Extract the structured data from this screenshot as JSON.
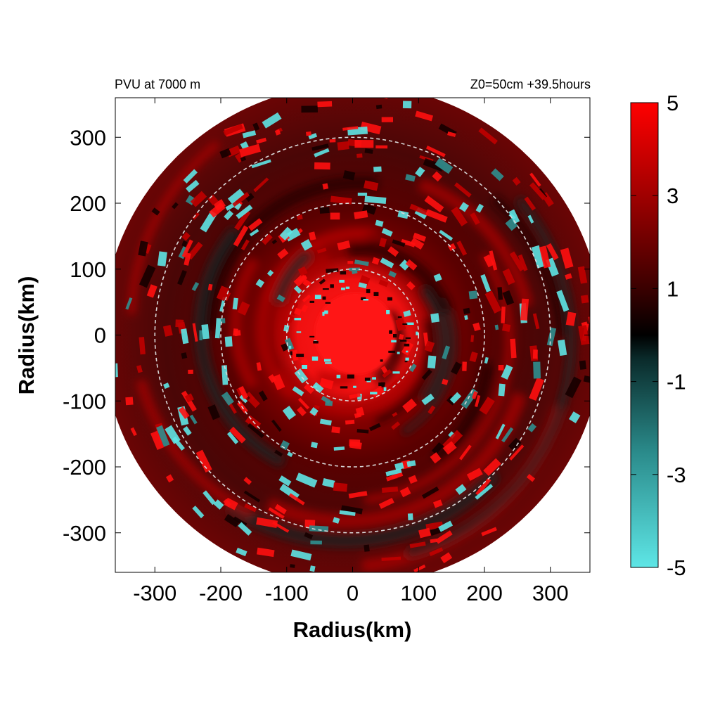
{
  "chart_data": {
    "type": "heatmap",
    "title_left": "PVU at  7000 m",
    "title_right": "Z0=50cm  +39.5hours",
    "xlabel": "Radius(km)",
    "ylabel": "Radius(km)",
    "xlim": [
      -360,
      360
    ],
    "ylim": [
      -360,
      360
    ],
    "x_ticks": [
      -300,
      -200,
      -100,
      0,
      100,
      200,
      300
    ],
    "y_ticks": [
      300,
      200,
      100,
      0,
      -100,
      -200,
      -300
    ],
    "domain_radius_km": 380,
    "reference_circles_km": [
      100,
      200,
      300
    ],
    "colorbar": {
      "min": -5,
      "max": 5,
      "ticks": [
        5,
        3,
        1,
        -1,
        -3,
        -5
      ],
      "colors": {
        "low": "#5ee6e6",
        "mid": "#000000",
        "high": "#ff0000"
      }
    },
    "field_description": "Potential vorticity (PVU); strong positive core (about 5 PVU) within about 60 km of center, spiral bands of mixed positive (red) and negative (cyan) values outward"
  }
}
